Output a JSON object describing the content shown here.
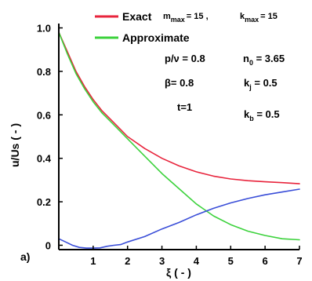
{
  "chart_data": {
    "type": "line",
    "panel_label": "a)",
    "xlabel": "ξ ( - )",
    "ylabel": "u/Us ( - )",
    "xlim": [
      0,
      7
    ],
    "ylim": [
      -0.02,
      1.02
    ],
    "x_ticks": [
      1,
      2,
      3,
      4,
      5,
      6,
      7
    ],
    "y_ticks": [
      0,
      0.2,
      0.4,
      0.6,
      0.8,
      1.0
    ],
    "x_tick_labels": [
      "1",
      "2",
      "3",
      "4",
      "5",
      "6",
      "7"
    ],
    "y_tick_labels": [
      "0",
      "0.2",
      "0.4",
      "0.6",
      "0.8",
      "1.0"
    ],
    "grid": false,
    "legend": {
      "placement": "top-right",
      "entries": [
        {
          "label": "Exact",
          "color": "#e8243c"
        },
        {
          "label": "Approximate",
          "color": "#3cd23c"
        }
      ]
    },
    "legend_params": {
      "m": "m",
      "m_sub": "max",
      "m_val": "= 15 ,",
      "k": "k",
      "k_sub": "max",
      "k_val": "= 15"
    },
    "annotations": {
      "p_nu": "p/ν = 0.8",
      "n0": "n",
      "n0_sub": "0",
      "n0_val": " = 3.65",
      "beta": "β= 0.8",
      "kj": "k",
      "kj_sub": "j",
      "kj_val": " = 0.5",
      "t": "t=1",
      "kb": "k",
      "kb_sub": "b",
      "kb_val": " = 0.5"
    },
    "series": [
      {
        "name": "Exact",
        "color": "#e8243c",
        "x": [
          0,
          0.25,
          0.5,
          0.75,
          1,
          1.25,
          1.5,
          1.75,
          2,
          2.5,
          3,
          3.5,
          4,
          4.5,
          5,
          5.5,
          6,
          6.5,
          7
        ],
        "y": [
          0.98,
          0.89,
          0.8,
          0.73,
          0.67,
          0.62,
          0.58,
          0.54,
          0.5,
          0.445,
          0.4,
          0.365,
          0.338,
          0.318,
          0.305,
          0.297,
          0.292,
          0.288,
          0.283
        ]
      },
      {
        "color": "#3cd23c",
        "x": [
          0,
          0.25,
          0.5,
          0.75,
          1,
          1.25,
          1.5,
          1.75,
          2,
          2.5,
          3,
          3.5,
          4,
          4.5,
          5,
          5.5,
          6,
          6.5,
          7
        ],
        "y": [
          0.98,
          0.88,
          0.79,
          0.72,
          0.66,
          0.61,
          0.57,
          0.53,
          0.49,
          0.41,
          0.33,
          0.26,
          0.19,
          0.135,
          0.095,
          0.065,
          0.045,
          0.03,
          0.025
        ]
      },
      {
        "color": "#3a4ed8",
        "x": [
          0,
          0.2,
          0.4,
          0.6,
          0.8,
          1,
          1.2,
          1.4,
          1.6,
          1.8,
          2,
          2.5,
          3,
          3.5,
          4,
          4.5,
          5,
          5.5,
          6,
          6.5,
          7
        ],
        "y": [
          0.03,
          0.015,
          0.0,
          -0.01,
          -0.013,
          -0.013,
          -0.012,
          -0.005,
          0.0,
          0.003,
          0.015,
          0.04,
          0.075,
          0.105,
          0.14,
          0.17,
          0.195,
          0.215,
          0.232,
          0.245,
          0.258
        ]
      }
    ]
  }
}
